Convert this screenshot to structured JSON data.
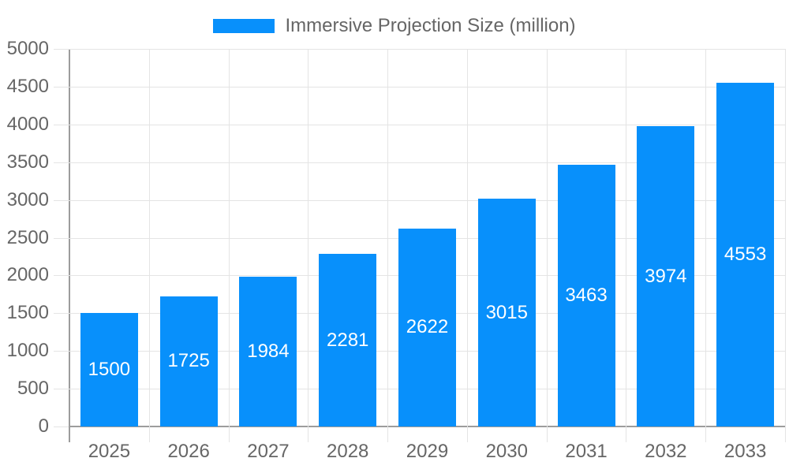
{
  "legend": {
    "label": "Immersive Projection Size (million)"
  },
  "chart_data": {
    "type": "bar",
    "title": "Immersive Projection Size (million)",
    "categories": [
      "2025",
      "2026",
      "2027",
      "2028",
      "2029",
      "2030",
      "2031",
      "2032",
      "2033"
    ],
    "values": [
      1500,
      1725,
      1984,
      2281,
      2622,
      3015,
      3463,
      3974,
      4553
    ],
    "value_labels": [
      "1500",
      "1725",
      "1984",
      "2281",
      "2622",
      "3015",
      "3463",
      "3974",
      "4553"
    ],
    "xlabel": "",
    "ylabel": "",
    "ylim": [
      0,
      5000
    ],
    "ytick_step": 500,
    "ytick_labels": [
      "0",
      "500",
      "1000",
      "1500",
      "2000",
      "2500",
      "3000",
      "3500",
      "4000",
      "4500",
      "5000"
    ],
    "grid": true,
    "legend_position": "top",
    "colors": {
      "bar": "#0890fb",
      "value_label": "#ffffff",
      "axis_text": "#666666",
      "gridline": "#e4e4e4",
      "axis_line": "#9c9c9c",
      "background": "#ffffff"
    }
  }
}
